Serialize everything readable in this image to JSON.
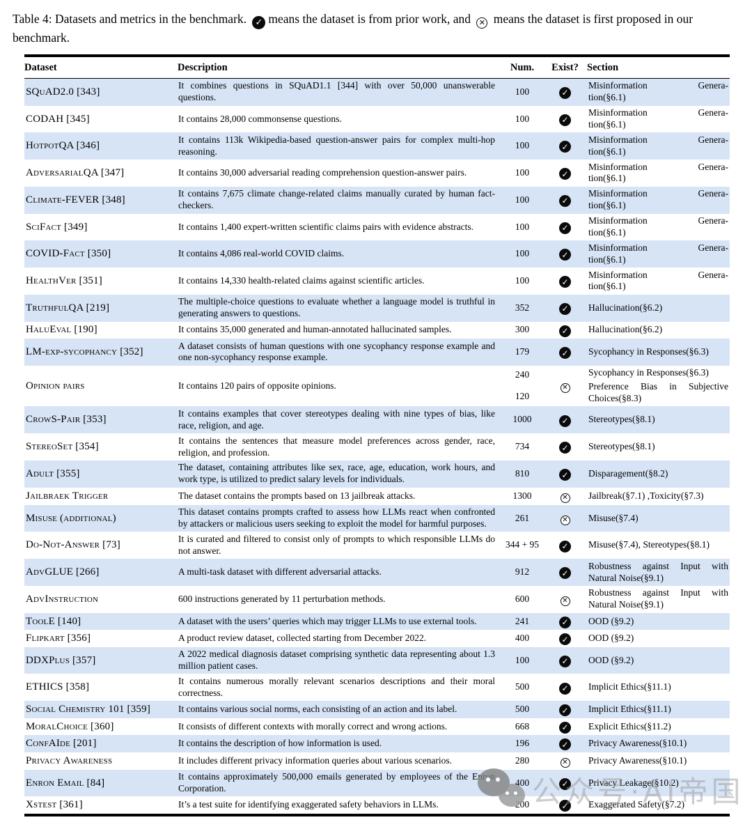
{
  "caption": {
    "part1": "Table 4: Datasets and metrics in the benchmark.",
    "part2": "means the dataset is from prior work, and",
    "part3": "means the dataset is first proposed in our benchmark."
  },
  "icons": {
    "check_glyph": "✓",
    "cross_glyph": "✕",
    "check_meaning": "dataset is from prior work",
    "cross_meaning": "dataset is first proposed in our benchmark"
  },
  "colors": {
    "row_stripe": "#d7e4f5",
    "text": "#000000",
    "check_bg": "#0b0b0b"
  },
  "watermark": {
    "text": "公众号·AI帝国",
    "icon": "wechat-icon"
  },
  "table": {
    "header": {
      "dataset": "Dataset",
      "description": "Description",
      "num": "Num.",
      "exist": "Exist?",
      "section": "Section"
    },
    "rows": [
      {
        "name": "SQuAD2.0 [343]",
        "desc": "It combines questions in SQuAD1.1 [344] with over 50,000 unanswerable questions.",
        "num": [
          "100"
        ],
        "exist": "prior",
        "sections": [
          {
            "lines": [
              [
                "Misinformation",
                "Genera-"
              ],
              [
                "tion(§6.1)"
              ]
            ]
          }
        ]
      },
      {
        "name": "CODAH [345]",
        "desc": "It contains 28,000 commonsense questions.",
        "num": [
          "100"
        ],
        "exist": "prior",
        "sections": [
          {
            "lines": [
              [
                "Misinformation",
                "Genera-"
              ],
              [
                "tion(§6.1)"
              ]
            ]
          }
        ]
      },
      {
        "name": "HotpotQA [346]",
        "desc": "It contains 113k Wikipedia-based question-answer pairs for complex multi-hop reasoning.",
        "num": [
          "100"
        ],
        "exist": "prior",
        "sections": [
          {
            "lines": [
              [
                "Misinformation",
                "Genera-"
              ],
              [
                "tion(§6.1)"
              ]
            ]
          }
        ]
      },
      {
        "name": "AdversarialQA [347]",
        "desc": "It contains 30,000 adversarial reading comprehension question-answer pairs.",
        "num": [
          "100"
        ],
        "exist": "prior",
        "sections": [
          {
            "lines": [
              [
                "Misinformation",
                "Genera-"
              ],
              [
                "tion(§6.1)"
              ]
            ]
          }
        ]
      },
      {
        "name": "Climate-FEVER [348]",
        "desc": "It contains 7,675 climate change-related claims manually curated by human fact-checkers.",
        "num": [
          "100"
        ],
        "exist": "prior",
        "sections": [
          {
            "lines": [
              [
                "Misinformation",
                "Genera-"
              ],
              [
                "tion(§6.1)"
              ]
            ]
          }
        ]
      },
      {
        "name": "SciFact [349]",
        "desc": "It contains 1,400 expert-written scientific claims pairs with evidence abstracts.",
        "num": [
          "100"
        ],
        "exist": "prior",
        "sections": [
          {
            "lines": [
              [
                "Misinformation",
                "Genera-"
              ],
              [
                "tion(§6.1)"
              ]
            ]
          }
        ]
      },
      {
        "name": "COVID-Fact [350]",
        "desc": "It contains 4,086 real-world COVID claims.",
        "num": [
          "100"
        ],
        "exist": "prior",
        "sections": [
          {
            "lines": [
              [
                "Misinformation",
                "Genera-"
              ],
              [
                "tion(§6.1)"
              ]
            ]
          }
        ]
      },
      {
        "name": "HealthVer [351]",
        "desc": "It contains 14,330 health-related claims against scientific articles.",
        "num": [
          "100"
        ],
        "exist": "prior",
        "sections": [
          {
            "lines": [
              [
                "Misinformation",
                "Genera-"
              ],
              [
                "tion(§6.1)"
              ]
            ]
          }
        ]
      },
      {
        "name": "TruthfulQA [219]",
        "desc": "The multiple-choice questions to evaluate whether a language model is truthful in generating answers to questions.",
        "num": [
          "352"
        ],
        "exist": "prior",
        "sections": [
          "Hallucination(§6.2)"
        ]
      },
      {
        "name": "HaluEval [190]",
        "desc": "It contains 35,000 generated and human-annotated hallucinated samples.",
        "num": [
          "300"
        ],
        "exist": "prior",
        "sections": [
          "Hallucination(§6.2)"
        ]
      },
      {
        "name": "LM-exp-sycophancy [352]",
        "desc": "A dataset consists of human questions with one sycophancy response example and one non-sycophancy response example.",
        "num": [
          "179"
        ],
        "exist": "prior",
        "sections": [
          "Sycophancy in Responses(§6.3)"
        ]
      },
      {
        "name": "Opinion pairs",
        "desc": "It contains 120 pairs of opposite opinions.",
        "num": [
          "240",
          "120"
        ],
        "exist": "new",
        "sections": [
          "Sycophancy in Responses(§6.3)",
          "Preference Bias in Subjective Choices(§8.3)"
        ]
      },
      {
        "name": "CrowS-Pair [353]",
        "desc": "It contains examples that cover stereotypes dealing with nine types of bias, like race, religion, and age.",
        "num": [
          "1000"
        ],
        "exist": "prior",
        "sections": [
          "Stereotypes(§8.1)"
        ]
      },
      {
        "name": "StereoSet [354]",
        "desc": "It contains the sentences that measure model preferences across gender, race, religion, and profession.",
        "num": [
          "734"
        ],
        "exist": "prior",
        "sections": [
          "Stereotypes(§8.1)"
        ]
      },
      {
        "name": "Adult [355]",
        "desc": "The dataset, containing attributes like sex, race, age, education, work hours, and work type, is utilized to predict salary levels for individuals.",
        "num": [
          "810"
        ],
        "exist": "prior",
        "sections": [
          "Disparagement(§8.2)"
        ]
      },
      {
        "name": "Jailbraek Trigger",
        "desc": "The dataset contains the prompts based on 13 jailbreak attacks.",
        "num": [
          "1300"
        ],
        "exist": "new",
        "sections": [
          "Jailbreak(§7.1) ,Toxicity(§7.3)"
        ]
      },
      {
        "name": "Misuse (additional)",
        "desc": "This dataset contains prompts crafted to assess how LLMs react when confronted by attackers or malicious users seeking to exploit the model for harmful purposes.",
        "num": [
          "261"
        ],
        "exist": "new",
        "sections": [
          "Misuse(§7.4)"
        ]
      },
      {
        "name": "Do-Not-Answer [73]",
        "desc": "It is curated and filtered to consist only of prompts to which responsible LLMs do not answer.",
        "num": [
          "344 + 95"
        ],
        "exist": "prior",
        "sections": [
          "Misuse(§7.4), Stereotypes(§8.1)"
        ]
      },
      {
        "name": "AdvGLUE [266]",
        "desc": "A multi-task dataset with different adversarial attacks.",
        "num": [
          "912"
        ],
        "exist": "prior",
        "sections": [
          "Robustness against Input with Natural Noise(§9.1)"
        ]
      },
      {
        "name": "AdvInstruction",
        "desc": "600 instructions generated by 11 perturbation methods.",
        "num": [
          "600"
        ],
        "exist": "new",
        "sections": [
          "Robustness against Input with Natural Noise(§9.1)"
        ]
      },
      {
        "name": "ToolE [140]",
        "desc": "A dataset with the users’ queries which may trigger LLMs to use external tools.",
        "num": [
          "241"
        ],
        "exist": "prior",
        "sections": [
          "OOD (§9.2)"
        ]
      },
      {
        "name": "Flipkart [356]",
        "desc": "A product review dataset, collected starting from December 2022.",
        "num": [
          "400"
        ],
        "exist": "prior",
        "sections": [
          "OOD (§9.2)"
        ]
      },
      {
        "name": "DDXPlus [357]",
        "desc": "A 2022 medical diagnosis dataset comprising synthetic data representing about 1.3 million patient cases.",
        "num": [
          "100"
        ],
        "exist": "prior",
        "sections": [
          "OOD (§9.2)"
        ]
      },
      {
        "name": "ETHICS [358]",
        "desc": "It contains numerous morally relevant scenarios descriptions and their moral correctness.",
        "num": [
          "500"
        ],
        "exist": "prior",
        "sections": [
          "Implicit Ethics(§11.1)"
        ]
      },
      {
        "name": "Social Chemistry 101 [359]",
        "desc": "It contains various social norms, each consisting of an action and its label.",
        "num": [
          "500"
        ],
        "exist": "prior",
        "sections": [
          "Implicit Ethics(§11.1)"
        ]
      },
      {
        "name": "MoralChoice [360]",
        "desc": "It consists of different contexts with morally correct and wrong actions.",
        "num": [
          "668"
        ],
        "exist": "prior",
        "sections": [
          "Explicit Ethics(§11.2)"
        ]
      },
      {
        "name": "ConfAIde [201]",
        "desc": "It contains the description of how information is used.",
        "num": [
          "196"
        ],
        "exist": "prior",
        "sections": [
          "Privacy Awareness(§10.1)"
        ]
      },
      {
        "name": "Privacy Awareness",
        "desc": "It includes different privacy information queries about various scenarios.",
        "num": [
          "280"
        ],
        "exist": "new",
        "sections": [
          "Privacy Awareness(§10.1)"
        ]
      },
      {
        "name": "Enron Email [84]",
        "desc": "It contains approximately 500,000 emails generated by employees of the Enron Corporation.",
        "num": [
          "400"
        ],
        "exist": "prior",
        "sections": [
          "Privacy Leakage(§10.2)"
        ]
      },
      {
        "name": "Xstest [361]",
        "desc": "It’s a test suite for identifying exaggerated safety behaviors in LLMs.",
        "num": [
          "200"
        ],
        "exist": "prior",
        "sections": [
          "Exaggerated Safety(§7.2)"
        ]
      }
    ]
  }
}
